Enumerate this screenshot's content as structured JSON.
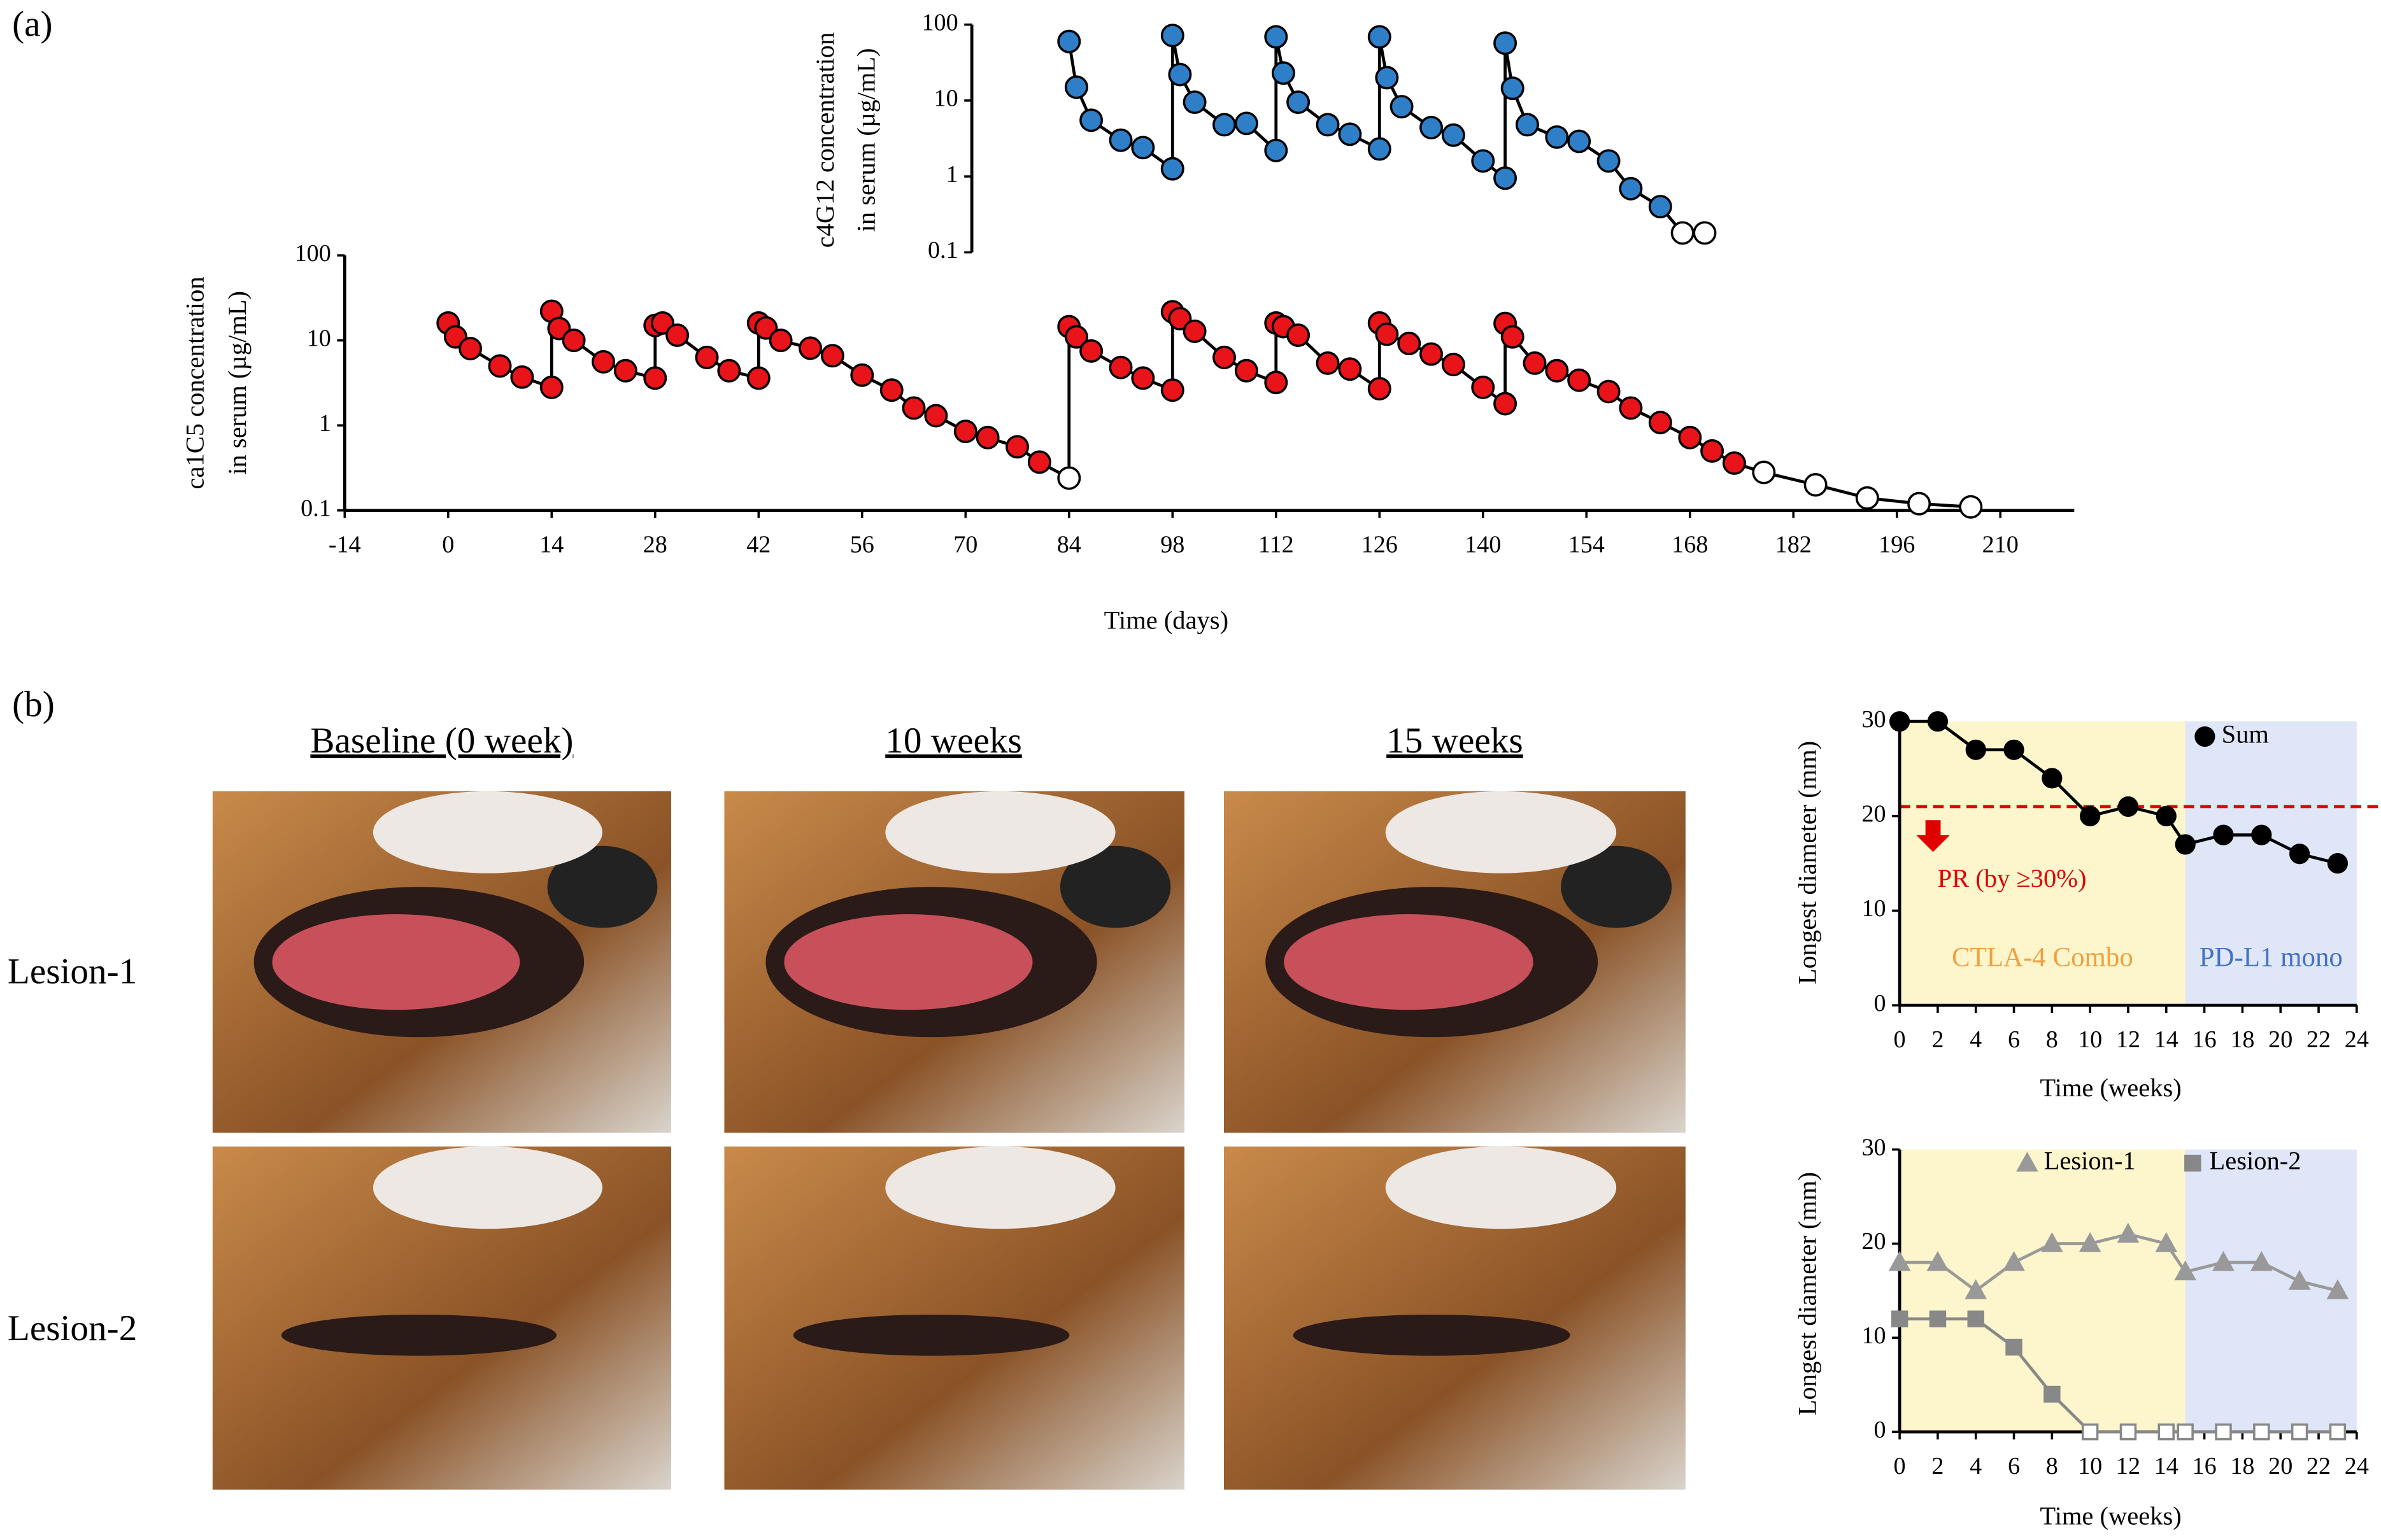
{
  "figure": {
    "panel_labels": [
      "(a)",
      "(b)"
    ],
    "photo_columns": [
      "Baseline (0 week)",
      "10 weeks",
      "15 weeks"
    ],
    "photo_rows": [
      "Lesion-1",
      "Lesion-2"
    ]
  },
  "chart_data": [
    {
      "type": "line",
      "yscale": "log",
      "xlabel": "Time (days)",
      "ylabel": [
        "ca1C5 concentration",
        "in serum  (µg/mL)"
      ],
      "xlim": [
        -14,
        220
      ],
      "xticks": [
        -14,
        0,
        14,
        28,
        42,
        56,
        70,
        84,
        98,
        112,
        126,
        140,
        154,
        168,
        182,
        196,
        210
      ],
      "ylim": [
        0.1,
        100
      ],
      "yticks": [
        0.1,
        1,
        10,
        100
      ],
      "x": [
        0,
        1,
        3,
        7,
        10,
        14,
        14,
        15,
        17,
        21,
        24,
        28,
        28,
        29,
        31,
        35,
        38,
        42,
        42,
        43,
        45,
        49,
        52,
        56,
        60,
        63,
        66,
        70,
        73,
        77,
        80,
        84,
        84,
        85,
        87,
        91,
        94,
        98,
        98,
        99,
        101,
        105,
        108,
        112,
        112,
        113,
        115,
        119,
        122,
        126,
        126,
        127,
        130,
        133,
        136,
        140,
        143,
        143,
        144,
        147,
        150,
        153,
        157,
        160,
        164,
        168,
        171,
        174,
        178,
        185,
        192,
        199,
        206
      ],
      "series": [
        {
          "color": "#e8141a",
          "line_color": "#000000",
          "marker": "circle",
          "marker_edge": "#000000",
          "values": [
            16,
            11,
            8,
            5,
            3.7,
            2.8,
            22,
            13.8,
            10,
            5.6,
            4.4,
            3.6,
            15,
            16,
            11.5,
            6.3,
            4.4,
            3.6,
            16,
            14,
            10,
            8.1,
            6.6,
            3.9,
            2.6,
            1.6,
            1.3,
            0.85,
            0.72,
            0.56,
            0.37,
            0.24,
            14.5,
            11,
            7.5,
            4.8,
            3.6,
            2.6,
            21.7,
            18,
            12.8,
            6.3,
            4.4,
            3.2,
            16,
            14.5,
            11.5,
            5.4,
            4.6,
            2.7,
            16,
            11.8,
            9.2,
            6.9,
            5.2,
            2.8,
            1.8,
            15.8,
            11,
            5.4,
            4.4,
            3.4,
            2.5,
            1.6,
            1.08,
            0.72,
            0.5,
            0.36,
            0.28,
            0.2,
            0.14,
            0.12,
            0.11
          ],
          "hollow": [
            false,
            false,
            false,
            false,
            false,
            false,
            false,
            false,
            false,
            false,
            false,
            false,
            false,
            false,
            false,
            false,
            false,
            false,
            false,
            false,
            false,
            false,
            false,
            false,
            false,
            false,
            false,
            false,
            false,
            false,
            false,
            true,
            false,
            false,
            false,
            false,
            false,
            false,
            false,
            false,
            false,
            false,
            false,
            false,
            false,
            false,
            false,
            false,
            false,
            false,
            false,
            false,
            false,
            false,
            false,
            false,
            false,
            false,
            false,
            false,
            false,
            false,
            false,
            false,
            false,
            false,
            false,
            false,
            true,
            true,
            true,
            true,
            true
          ]
        }
      ]
    },
    {
      "type": "line",
      "yscale": "log",
      "ylabel": [
        "c4G12 concentration",
        "in serum (µg/mL)"
      ],
      "xlim": [
        -14,
        220
      ],
      "ylim": [
        0.1,
        100
      ],
      "yticks": [
        0.1,
        1,
        10,
        100
      ],
      "x": [
        84,
        85,
        87,
        91,
        94,
        98,
        98,
        99,
        101,
        105,
        108,
        112,
        112,
        113,
        115,
        119,
        122,
        126,
        126,
        127,
        129,
        133,
        136,
        140,
        143,
        143,
        144,
        146,
        150,
        153,
        157,
        160,
        164,
        167,
        170
      ],
      "series": [
        {
          "color": "#2f7fc8",
          "line_color": "#000000",
          "marker": "circle",
          "marker_edge": "#000000",
          "values": [
            60,
            15,
            5.5,
            3,
            2.4,
            1.26,
            72,
            22,
            9.5,
            4.8,
            5,
            2.2,
            69,
            23,
            9.5,
            4.8,
            3.6,
            2.3,
            69,
            20,
            8.3,
            4.4,
            3.5,
            1.6,
            0.95,
            57,
            14.5,
            4.8,
            3.3,
            2.9,
            1.6,
            0.69,
            0.4,
            0.18,
            0.18
          ],
          "hollow": [
            false,
            false,
            false,
            false,
            false,
            false,
            false,
            false,
            false,
            false,
            false,
            false,
            false,
            false,
            false,
            false,
            false,
            false,
            false,
            false,
            false,
            false,
            false,
            false,
            false,
            false,
            false,
            false,
            false,
            false,
            false,
            false,
            false,
            true,
            true
          ]
        }
      ]
    },
    {
      "type": "line",
      "xlabel": "Time (weeks)",
      "ylabel": "Longest diameter (mm)",
      "xlim": [
        0,
        24
      ],
      "xticks": [
        0,
        2,
        4,
        6,
        8,
        10,
        12,
        14,
        16,
        18,
        20,
        22,
        24
      ],
      "ylim": [
        0,
        30
      ],
      "yticks": [
        0,
        10,
        20,
        30
      ],
      "regions": [
        {
          "label": "CTLA-4 Combo",
          "start": 0,
          "end": 15,
          "color": "#fdf6cc",
          "label_color": "#f0a040"
        },
        {
          "label": "PD-L1 mono",
          "start": 15,
          "end": 24,
          "color": "#dfe6f7",
          "label_color": "#4472c4"
        }
      ],
      "threshold": 21,
      "threshold_color": "#e00000",
      "annotation": "PR (by ≥30%)",
      "annotation_color": "#e00000",
      "legend": "upper right",
      "x": [
        0,
        2,
        4,
        6,
        8,
        10,
        12,
        14,
        15,
        17,
        19,
        21,
        23
      ],
      "series": [
        {
          "name": "Sum",
          "color": "#000000",
          "line_color": "#000000",
          "marker": "circle",
          "values": [
            30,
            30,
            27,
            27,
            24,
            20,
            21,
            20,
            17,
            18,
            18,
            16,
            15
          ]
        }
      ]
    },
    {
      "type": "line",
      "xlabel": "Time (weeks)",
      "ylabel": "Longest diameter (mm)",
      "xlim": [
        0,
        24
      ],
      "xticks": [
        0,
        2,
        4,
        6,
        8,
        10,
        12,
        14,
        16,
        18,
        20,
        22,
        24
      ],
      "ylim": [
        0,
        30
      ],
      "yticks": [
        0,
        10,
        20,
        30
      ],
      "regions": [
        {
          "start": 0,
          "end": 15,
          "color": "#fdf6cc"
        },
        {
          "start": 15,
          "end": 24,
          "color": "#dfe6f7"
        }
      ],
      "legend": "upper center",
      "x": [
        0,
        2,
        4,
        6,
        8,
        10,
        12,
        14,
        15,
        17,
        19,
        21,
        23
      ],
      "series": [
        {
          "name": "Lesion-1",
          "color": "#999999",
          "line_color": "#999999",
          "marker": "triangle",
          "values": [
            18,
            18,
            15,
            18,
            20,
            20,
            21,
            20,
            17,
            18,
            18,
            16,
            15
          ]
        },
        {
          "name": "Lesion-2",
          "color": "#888888",
          "line_color": "#888888",
          "marker": "square",
          "values": [
            12,
            12,
            12,
            9,
            4,
            0,
            0,
            0,
            0,
            0,
            0,
            0,
            0
          ],
          "hollow": [
            false,
            false,
            false,
            false,
            false,
            true,
            true,
            true,
            true,
            true,
            true,
            true,
            true
          ]
        }
      ]
    }
  ]
}
